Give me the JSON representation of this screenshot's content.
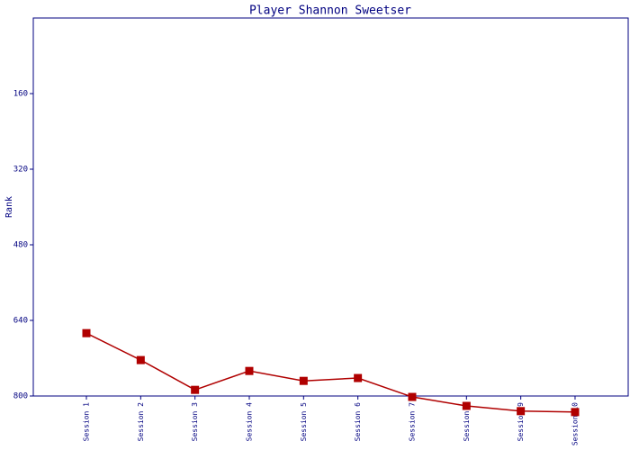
{
  "chart_data": {
    "type": "line",
    "title": "Player Shannon Sweetser",
    "y_label": "Rank",
    "categories": [
      "Session 1",
      "Session 2",
      "Session 3",
      "Session 4",
      "Session 5",
      "Session 6",
      "Session 7",
      "Session 8",
      "Session 9",
      "Session 10"
    ],
    "series": [
      {
        "name": "Rank",
        "color": "#b00000",
        "values": [
          667,
          724,
          787,
          747,
          768,
          762,
          802,
          821,
          832,
          834
        ]
      }
    ],
    "ylim": [
      800,
      0
    ],
    "yticks": [
      160,
      320,
      480,
      640,
      800
    ]
  }
}
